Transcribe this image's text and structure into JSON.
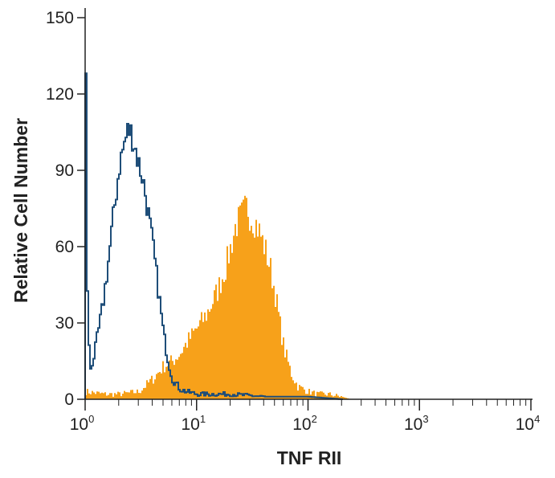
{
  "chart_data": {
    "type": "area",
    "title": "",
    "xlabel": "TNF RII",
    "ylabel": "Relative Cell Number",
    "xscale": "log",
    "xlim": [
      1,
      10000
    ],
    "ylim": [
      0,
      150
    ],
    "grid": false,
    "legend": "none",
    "x_ticks": [
      {
        "value": 1,
        "base": "10",
        "exp": "0"
      },
      {
        "value": 10,
        "base": "10",
        "exp": "1"
      },
      {
        "value": 100,
        "base": "10",
        "exp": "2"
      },
      {
        "value": 1000,
        "base": "10",
        "exp": "3"
      },
      {
        "value": 10000,
        "base": "10",
        "exp": "4"
      }
    ],
    "y_ticks": [
      "0",
      "30",
      "60",
      "90",
      "120",
      "150"
    ],
    "series": [
      {
        "style": "filled",
        "color": "#f7a11a",
        "x": [
          1.0,
          1.5,
          2.0,
          3.0,
          4.0,
          5.0,
          6.0,
          7.0,
          8.0,
          10.0,
          12.0,
          15.0,
          18.0,
          20.0,
          22.0,
          25.0,
          28.0,
          30.0,
          33.0,
          36.0,
          40.0,
          45.0,
          50.0,
          55.0,
          60.0,
          70.0,
          80.0,
          100.0,
          120.0,
          150.0,
          200.0,
          240.0
        ],
        "y": [
          3,
          2,
          2,
          3,
          8,
          13,
          15,
          18,
          22,
          28,
          33,
          42,
          52,
          60,
          68,
          72,
          76,
          72,
          70,
          66,
          60,
          52,
          42,
          30,
          20,
          10,
          5,
          3,
          2,
          2,
          1,
          0
        ]
      },
      {
        "style": "outline",
        "color": "#1f4e79",
        "x": [
          1.0,
          1.02,
          1.05,
          1.1,
          1.2,
          1.4,
          1.6,
          1.8,
          2.0,
          2.2,
          2.4,
          2.6,
          2.8,
          3.0,
          3.2,
          3.5,
          4.0,
          4.5,
          5.0,
          5.5,
          6.0,
          7.0,
          8.0,
          10.0,
          20.0,
          40.0,
          100.0,
          200.0
        ],
        "y": [
          125,
          60,
          25,
          12,
          18,
          35,
          55,
          75,
          92,
          100,
          106,
          104,
          98,
          92,
          88,
          78,
          60,
          42,
          25,
          15,
          8,
          4,
          3,
          2,
          2,
          1,
          1,
          0
        ]
      }
    ]
  }
}
